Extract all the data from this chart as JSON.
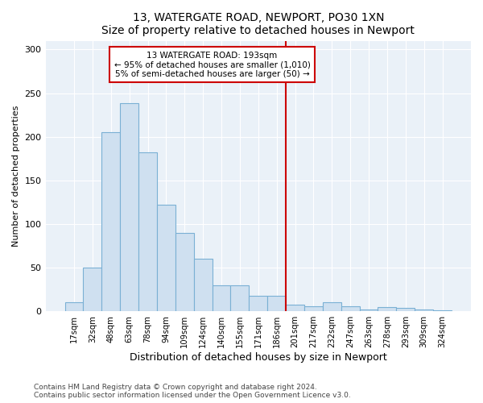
{
  "title": "13, WATERGATE ROAD, NEWPORT, PO30 1XN",
  "subtitle": "Size of property relative to detached houses in Newport",
  "xlabel": "Distribution of detached houses by size in Newport",
  "ylabel": "Number of detached properties",
  "bar_color": "#cfe0f0",
  "bar_edge_color": "#7ab0d4",
  "annotation_box_text": "13 WATERGATE ROAD: 193sqm\n← 95% of detached houses are smaller (1,010)\n5% of semi-detached houses are larger (50) →",
  "vline_color": "#cc0000",
  "categories": [
    "17sqm",
    "32sqm",
    "48sqm",
    "63sqm",
    "78sqm",
    "94sqm",
    "109sqm",
    "124sqm",
    "140sqm",
    "155sqm",
    "171sqm",
    "186sqm",
    "201sqm",
    "217sqm",
    "232sqm",
    "247sqm",
    "263sqm",
    "278sqm",
    "293sqm",
    "309sqm",
    "324sqm"
  ],
  "bar_heights": [
    10,
    50,
    205,
    238,
    182,
    122,
    90,
    60,
    30,
    30,
    18,
    18,
    8,
    6,
    10,
    6,
    2,
    5,
    4,
    2,
    1
  ],
  "vline_bin": 12,
  "ylim": [
    0,
    310
  ],
  "yticks": [
    0,
    50,
    100,
    150,
    200,
    250,
    300
  ],
  "footer": "Contains HM Land Registry data © Crown copyright and database right 2024.\nContains public sector information licensed under the Open Government Licence v3.0.",
  "figsize": [
    6.0,
    5.0
  ],
  "dpi": 100
}
